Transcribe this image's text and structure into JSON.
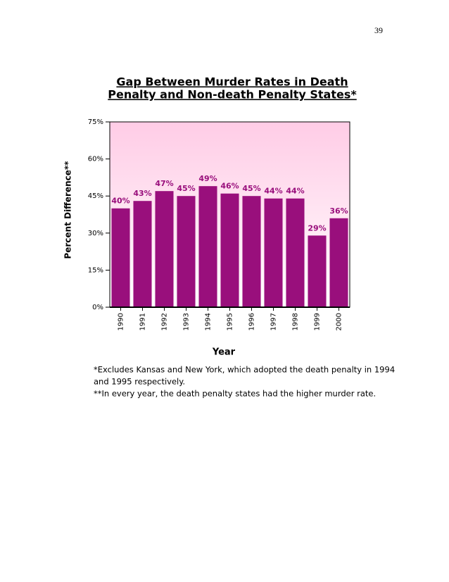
{
  "page_number": "39",
  "chart_data": {
    "type": "bar",
    "title": [
      "Gap Between Murder Rates in Death",
      "Penalty and Non-death Penalty States*"
    ],
    "x_label": "Year",
    "y_label": "Percent Difference**",
    "categories": [
      "1990",
      "1991",
      "1992",
      "1993",
      "1994",
      "1995",
      "1996",
      "1997",
      "1998",
      "1999",
      "2000"
    ],
    "values": [
      40,
      43,
      47,
      45,
      49,
      46,
      45,
      44,
      44,
      29,
      36
    ],
    "value_labels": [
      "40%",
      "43%",
      "47%",
      "45%",
      "49%",
      "46%",
      "45%",
      "44%",
      "44%",
      "29%",
      "36%"
    ],
    "color": "#990f7c",
    "ylim": [
      0,
      75
    ],
    "yticks": [
      {
        "value": 0,
        "label": "0%"
      },
      {
        "value": 15,
        "label": "15%"
      },
      {
        "value": 30,
        "label": "30%"
      },
      {
        "value": 45,
        "label": "45%"
      },
      {
        "value": 60,
        "label": "60%"
      },
      {
        "value": 75,
        "label": "75%"
      }
    ],
    "notes": [
      "*Excludes Kansas and New York, which adopted the death penalty in 1994",
      "and 1995 respectively.",
      "**In every year, the death penalty states had the higher murder rate."
    ]
  }
}
